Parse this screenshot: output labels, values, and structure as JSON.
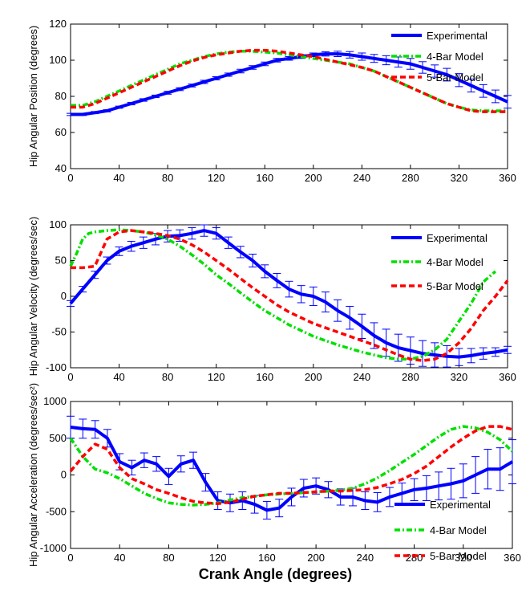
{
  "chart_data": [
    {
      "type": "line",
      "ylabel": "Hip Angular Position (degrees)",
      "xlabel": "",
      "xlim": [
        0,
        360
      ],
      "ylim": [
        40,
        120
      ],
      "xticks": [
        "0",
        "40",
        "80",
        "120",
        "160",
        "200",
        "240",
        "280",
        "320",
        "360"
      ],
      "yticks": [
        "40",
        "60",
        "80",
        "100",
        "120"
      ],
      "legend_position": "top-right",
      "series": [
        {
          "name": "Experimental",
          "color": "#0000ff",
          "style": "solid",
          "error_bars": true,
          "x": [
            0,
            10,
            20,
            30,
            40,
            50,
            60,
            70,
            80,
            90,
            100,
            110,
            120,
            130,
            140,
            150,
            160,
            170,
            180,
            190,
            200,
            210,
            220,
            230,
            240,
            250,
            260,
            270,
            280,
            290,
            300,
            310,
            320,
            330,
            340,
            350,
            360
          ],
          "y": [
            70,
            70,
            71,
            72,
            74,
            76,
            78,
            80,
            82,
            84,
            86,
            88,
            90,
            92,
            94,
            96,
            98,
            100,
            101,
            102,
            103,
            103.5,
            103.5,
            103,
            102,
            101,
            100,
            99,
            98,
            96,
            94,
            92,
            89,
            86,
            83,
            80,
            77
          ],
          "err": [
            0.6,
            0.6,
            0.6,
            0.6,
            0.6,
            0.7,
            0.7,
            0.7,
            0.8,
            0.8,
            0.8,
            0.9,
            0.9,
            0.9,
            1,
            1,
            1,
            1,
            1,
            1,
            1,
            1.2,
            1.5,
            1.8,
            2,
            2.2,
            2.5,
            2.8,
            3,
            3.2,
            3.4,
            3.5,
            3.6,
            3.6,
            3.5,
            3.5,
            3.5
          ]
        },
        {
          "name": "4-Bar Model",
          "color": "#00e000",
          "style": "dashdot",
          "x": [
            0,
            10,
            20,
            30,
            40,
            50,
            60,
            70,
            80,
            90,
            100,
            110,
            120,
            130,
            140,
            150,
            160,
            170,
            180,
            190,
            200,
            210,
            220,
            230,
            240,
            250,
            260,
            270,
            280,
            290,
            300,
            310,
            320,
            330,
            340,
            350,
            360
          ],
          "y": [
            75,
            75,
            77,
            80,
            83,
            86,
            89,
            92,
            95,
            98,
            100,
            102,
            103.5,
            104.5,
            105,
            105,
            104.5,
            104,
            103,
            102,
            101,
            100,
            99,
            98,
            96,
            94,
            91,
            88,
            85,
            82,
            79,
            76,
            74,
            72.5,
            72,
            72,
            72
          ]
        },
        {
          "name": "5-Bar Model",
          "color": "#ff0000",
          "style": "dashed",
          "x": [
            0,
            10,
            20,
            30,
            40,
            50,
            60,
            70,
            80,
            90,
            100,
            110,
            120,
            130,
            140,
            150,
            160,
            170,
            180,
            190,
            200,
            210,
            220,
            230,
            240,
            250,
            260,
            270,
            280,
            290,
            300,
            310,
            320,
            330,
            340,
            350,
            360
          ],
          "y": [
            74,
            74,
            76,
            79,
            82,
            85,
            88,
            91,
            94,
            97,
            99.5,
            101.5,
            103,
            104,
            105,
            105.5,
            105.5,
            105,
            104,
            103,
            102,
            100.5,
            99,
            97.5,
            96,
            94,
            91,
            88,
            85,
            82,
            79,
            76,
            74,
            72,
            71.5,
            71.5,
            71.5
          ]
        }
      ]
    },
    {
      "type": "line",
      "ylabel": "Hip Angular Velocity (degrees/sec)",
      "xlabel": "",
      "xlim": [
        0,
        360
      ],
      "ylim": [
        -100,
        100
      ],
      "xticks": [
        "0",
        "40",
        "80",
        "120",
        "160",
        "200",
        "240",
        "280",
        "320",
        "360"
      ],
      "yticks": [
        "-100",
        "-50",
        "0",
        "50",
        "100"
      ],
      "legend_position": "top-right",
      "series": [
        {
          "name": "Experimental",
          "color": "#0000ff",
          "style": "solid",
          "error_bars": true,
          "x": [
            0,
            10,
            20,
            30,
            40,
            50,
            60,
            70,
            80,
            90,
            100,
            110,
            120,
            130,
            140,
            150,
            160,
            170,
            180,
            190,
            200,
            210,
            220,
            230,
            240,
            250,
            260,
            270,
            280,
            290,
            300,
            310,
            320,
            330,
            340,
            350,
            360
          ],
          "y": [
            -10,
            10,
            30,
            50,
            63,
            70,
            75,
            80,
            84,
            85,
            88,
            92,
            88,
            75,
            62,
            50,
            35,
            22,
            10,
            3,
            0,
            -8,
            -20,
            -30,
            -42,
            -55,
            -65,
            -72,
            -76,
            -80,
            -82,
            -84,
            -85,
            -83,
            -80,
            -78,
            -75
          ],
          "err": [
            4,
            4,
            5,
            5,
            6,
            7,
            8,
            8,
            8,
            8,
            8,
            8,
            8,
            8,
            8,
            9,
            9,
            10,
            11,
            12,
            13,
            14,
            15,
            16,
            17,
            18,
            19,
            19,
            19,
            18,
            17,
            15,
            12,
            10,
            8,
            6,
            5
          ]
        },
        {
          "name": "4-Bar Model",
          "color": "#00e000",
          "style": "dashdot",
          "x": [
            0,
            5,
            10,
            15,
            20,
            30,
            40,
            50,
            60,
            70,
            80,
            90,
            100,
            110,
            120,
            130,
            140,
            150,
            160,
            170,
            180,
            190,
            200,
            210,
            220,
            230,
            240,
            250,
            260,
            270,
            280,
            290,
            300,
            310,
            320,
            330,
            340,
            350
          ],
          "y": [
            42,
            60,
            80,
            88,
            90,
            92,
            93,
            92,
            90,
            86,
            80,
            70,
            58,
            45,
            30,
            18,
            5,
            -8,
            -20,
            -30,
            -40,
            -48,
            -56,
            -62,
            -68,
            -73,
            -78,
            -82,
            -86,
            -88,
            -88,
            -84,
            -75,
            -60,
            -35,
            -10,
            20,
            35
          ]
        },
        {
          "name": "5-Bar Model",
          "color": "#ff0000",
          "style": "dashed",
          "x": [
            0,
            10,
            20,
            30,
            40,
            50,
            60,
            70,
            80,
            90,
            100,
            110,
            120,
            130,
            140,
            150,
            160,
            170,
            180,
            190,
            200,
            210,
            220,
            230,
            240,
            250,
            260,
            270,
            280,
            290,
            300,
            310,
            320,
            330,
            340,
            350,
            360
          ],
          "y": [
            40,
            40,
            42,
            80,
            90,
            92,
            90,
            88,
            85,
            80,
            72,
            62,
            50,
            38,
            25,
            12,
            0,
            -12,
            -22,
            -30,
            -38,
            -44,
            -50,
            -56,
            -62,
            -68,
            -75,
            -82,
            -88,
            -90,
            -88,
            -80,
            -65,
            -45,
            -20,
            0,
            22
          ]
        }
      ]
    },
    {
      "type": "line",
      "ylabel": "Hip Angular Acceleration (degrees/sec²)",
      "xlabel": "Crank Angle (degrees)",
      "xlim": [
        0,
        360
      ],
      "ylim": [
        -1000,
        1000
      ],
      "xticks": [
        "0",
        "40",
        "80",
        "120",
        "160",
        "200",
        "240",
        "280",
        "320",
        "360"
      ],
      "yticks": [
        "-1000",
        "-500",
        "0",
        "500",
        "1000"
      ],
      "legend_position": "bottom-right",
      "series": [
        {
          "name": "Experimental",
          "color": "#0000ff",
          "style": "solid",
          "error_bars": true,
          "x": [
            0,
            10,
            20,
            30,
            40,
            50,
            60,
            70,
            80,
            90,
            100,
            110,
            120,
            130,
            140,
            150,
            160,
            170,
            180,
            190,
            200,
            210,
            220,
            230,
            240,
            250,
            260,
            270,
            280,
            290,
            300,
            310,
            320,
            330,
            340,
            350,
            360
          ],
          "y": [
            650,
            630,
            620,
            500,
            180,
            100,
            200,
            150,
            -20,
            150,
            200,
            -100,
            -350,
            -380,
            -350,
            -400,
            -480,
            -450,
            -300,
            -180,
            -150,
            -200,
            -300,
            -300,
            -350,
            -370,
            -300,
            -250,
            -200,
            -180,
            -150,
            -120,
            -80,
            0,
            80,
            80,
            180
          ],
          "err": [
            150,
            130,
            120,
            120,
            110,
            100,
            100,
            100,
            110,
            110,
            110,
            120,
            120,
            120,
            120,
            120,
            120,
            120,
            120,
            120,
            110,
            110,
            110,
            120,
            120,
            130,
            130,
            140,
            150,
            170,
            190,
            210,
            230,
            250,
            270,
            290,
            300
          ]
        },
        {
          "name": "4-Bar Model",
          "color": "#00e000",
          "style": "dashdot",
          "x": [
            0,
            10,
            20,
            30,
            40,
            50,
            60,
            70,
            80,
            90,
            100,
            110,
            120,
            130,
            140,
            150,
            160,
            170,
            180,
            190,
            200,
            210,
            220,
            230,
            240,
            250,
            260,
            270,
            280,
            290,
            300,
            310,
            320,
            330,
            340,
            350,
            360
          ],
          "y": [
            500,
            250,
            80,
            30,
            -50,
            -150,
            -250,
            -320,
            -380,
            -400,
            -410,
            -400,
            -380,
            -340,
            -310,
            -290,
            -270,
            -260,
            -250,
            -240,
            -230,
            -220,
            -210,
            -180,
            -120,
            -40,
            60,
            170,
            280,
            400,
            520,
            620,
            660,
            640,
            580,
            480,
            320
          ]
        },
        {
          "name": "5-Bar Model",
          "color": "#ff0000",
          "style": "dashed",
          "x": [
            0,
            10,
            20,
            30,
            40,
            50,
            60,
            70,
            80,
            90,
            100,
            110,
            120,
            130,
            140,
            150,
            160,
            170,
            180,
            190,
            200,
            210,
            220,
            230,
            240,
            250,
            260,
            270,
            280,
            290,
            300,
            310,
            320,
            330,
            340,
            350,
            360
          ],
          "y": [
            50,
            250,
            420,
            350,
            100,
            -50,
            -120,
            -200,
            -250,
            -310,
            -360,
            -380,
            -390,
            -370,
            -330,
            -290,
            -270,
            -250,
            -250,
            -240,
            -230,
            -220,
            -220,
            -210,
            -200,
            -170,
            -120,
            -60,
            20,
            120,
            250,
            380,
            500,
            600,
            660,
            660,
            620
          ]
        }
      ]
    }
  ]
}
